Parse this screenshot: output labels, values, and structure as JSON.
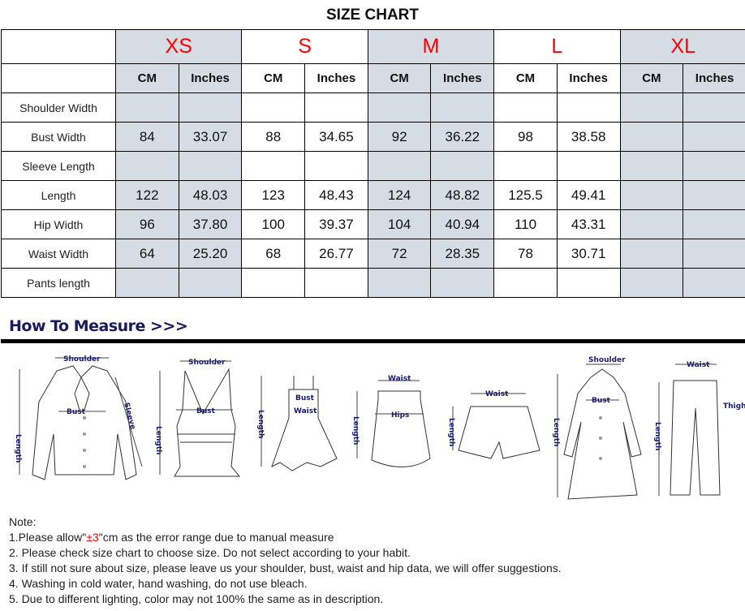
{
  "title": "SIZE CHART",
  "sizes": [
    "XS",
    "S",
    "M",
    "L",
    "XL"
  ],
  "units": [
    "CM",
    "Inches"
  ],
  "rows": [
    {
      "label": "Shoulder Width",
      "values": [
        "",
        "",
        "",
        "",
        "",
        "",
        "",
        "",
        "",
        ""
      ]
    },
    {
      "label": "Bust Width",
      "values": [
        "84",
        "33.07",
        "88",
        "34.65",
        "92",
        "36.22",
        "98",
        "38.58",
        "",
        ""
      ]
    },
    {
      "label": "Sleeve Length",
      "values": [
        "",
        "",
        "",
        "",
        "",
        "",
        "",
        "",
        "",
        ""
      ]
    },
    {
      "label": "Length",
      "values": [
        "122",
        "48.03",
        "123",
        "48.43",
        "124",
        "48.82",
        "125.5",
        "49.41",
        "",
        ""
      ]
    },
    {
      "label": "Hip Width",
      "values": [
        "96",
        "37.80",
        "100",
        "39.37",
        "104",
        "40.94",
        "110",
        "43.31",
        "",
        ""
      ]
    },
    {
      "label": "Waist Width",
      "values": [
        "64",
        "25.20",
        "68",
        "26.77",
        "72",
        "28.35",
        "78",
        "30.71",
        "",
        ""
      ]
    },
    {
      "label": "Pants length",
      "values": [
        "",
        "",
        "",
        "",
        "",
        "",
        "",
        "",
        "",
        ""
      ]
    }
  ],
  "colors": {
    "shade": "#d6dce4",
    "size_label": "#ff0000",
    "heading": "#1a1a5e"
  },
  "how_to_measure": "How To Measure >>>",
  "diagrams": {
    "shirt": [
      "Shoulder",
      "Bust",
      "Length",
      "Sleeve"
    ],
    "tank": [
      "Shoulder",
      "Bust",
      "Length"
    ],
    "dress": [
      "Bust",
      "Waist",
      "Length"
    ],
    "skirt": [
      "Waist",
      "Hips",
      "Length"
    ],
    "shorts": [
      "Waist",
      "Length"
    ],
    "coat": [
      "Shoulder",
      "Bust",
      "Length"
    ],
    "pants": [
      "Waist",
      "Thigh",
      "Length"
    ]
  },
  "notes": {
    "heading": "Note:",
    "n1_pre": "1.Please allow\"",
    "n1_red": "±3",
    "n1_post": "\"cm as the error range due to manual measure",
    "n2": "2. Please check size chart to choose size. Do not select according to your habit.",
    "n3": "3. If still not sure about size, please leave us your shoulder, bust, waist and hip data, we will offer suggestions.",
    "n4": "4. Washing in cold water, hand washing, do not use bleach.",
    "n5": "5. Due to different lighting, color may not 100% the same as in description."
  }
}
